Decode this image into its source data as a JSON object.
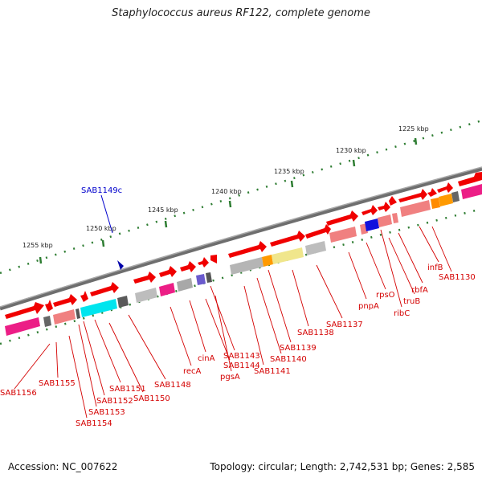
{
  "title": "Staphylococcus aureus RF122, complete genome",
  "footer": {
    "accession": "Accession: NC_007622",
    "topology": "Topology: circular; Length: 2,742,531 bp; Genes: 2,585"
  },
  "colors": {
    "backbone": "#808080",
    "ruler": "#2e7d32",
    "forward_gene": "#ff0000",
    "gene_label": "#d40000",
    "highlight_label": "#0000cc"
  },
  "scale_labels": [
    "1225 kbp",
    "1230 kbp",
    "1235 kbp",
    "1240 kbp",
    "1245 kbp",
    "1250 kbp",
    "1255 kbp"
  ],
  "highlight_gene": "SAB1149c",
  "gene_labels": [
    "SAB1156",
    "SAB1155",
    "SAB1154",
    "SAB1153",
    "SAB1152",
    "SAB1151",
    "SAB1150",
    "SAB1148",
    "recA",
    "cinA",
    "SAB1143",
    "SAB1144",
    "pgsA",
    "SAB1141",
    "SAB1140",
    "SAB1139",
    "SAB1138",
    "SAB1137",
    "pnpA",
    "rpsO",
    "ribC",
    "truB",
    "rbfA",
    "infB",
    "SAB1130"
  ]
}
